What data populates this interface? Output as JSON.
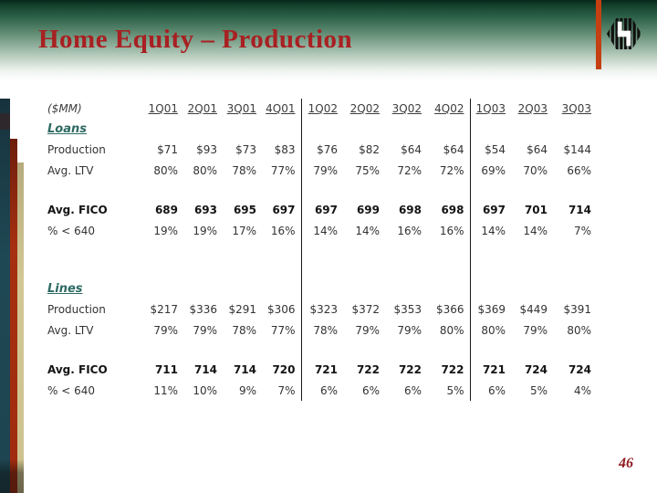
{
  "slide": {
    "title": "Home Equity – Production",
    "page_number": "46"
  },
  "logo": {
    "name": "huntington-hexagon-logo"
  },
  "table": {
    "unit_label": "($MM)",
    "columns": [
      "1Q01",
      "2Q01",
      "3Q01",
      "4Q01",
      "1Q02",
      "2Q02",
      "3Q02",
      "4Q02",
      "1Q03",
      "2Q03",
      "3Q03"
    ],
    "divider_after_columns": [
      "4Q01",
      "4Q02"
    ],
    "sections": [
      {
        "label": "Loans",
        "rows": [
          {
            "label": "Production",
            "bold": false,
            "values": [
              "$71",
              "$93",
              "$73",
              "$83",
              "$76",
              "$82",
              "$64",
              "$64",
              "$54",
              "$64",
              "$144"
            ]
          },
          {
            "label": "Avg. LTV",
            "bold": false,
            "values": [
              "80%",
              "80%",
              "78%",
              "77%",
              "79%",
              "75%",
              "72%",
              "72%",
              "69%",
              "70%",
              "66%"
            ]
          },
          {
            "label": "Avg. FICO",
            "bold": true,
            "spacer_before": true,
            "values": [
              "689",
              "693",
              "695",
              "697",
              "697",
              "699",
              "698",
              "698",
              "697",
              "701",
              "714"
            ]
          },
          {
            "label": "% < 640",
            "bold": false,
            "values": [
              "19%",
              "19%",
              "17%",
              "16%",
              "14%",
              "14%",
              "16%",
              "16%",
              "14%",
              "14%",
              "7%"
            ]
          }
        ]
      },
      {
        "label": "Lines",
        "rows": [
          {
            "label": "Production",
            "bold": false,
            "values": [
              "$217",
              "$336",
              "$291",
              "$306",
              "$323",
              "$372",
              "$353",
              "$366",
              "$369",
              "$449",
              "$391"
            ]
          },
          {
            "label": "Avg. LTV",
            "bold": false,
            "values": [
              "79%",
              "79%",
              "78%",
              "77%",
              "78%",
              "79%",
              "79%",
              "80%",
              "80%",
              "79%",
              "80%"
            ]
          },
          {
            "label": "Avg. FICO",
            "bold": true,
            "spacer_before": true,
            "values": [
              "711",
              "714",
              "714",
              "720",
              "721",
              "722",
              "722",
              "722",
              "721",
              "724",
              "724"
            ]
          },
          {
            "label": "% < 640",
            "bold": false,
            "values": [
              "11%",
              "10%",
              "9%",
              "7%",
              "6%",
              "6%",
              "6%",
              "5%",
              "6%",
              "5%",
              "4%"
            ]
          }
        ]
      }
    ]
  },
  "colors": {
    "title_red": "#a82022",
    "section_teal": "#2d6a63",
    "header_gradient_green": "#16452f",
    "logo_rule_orange": "#c44012",
    "edge_bar_teal": "#1e4854",
    "edge_bar_red": "#a52f10",
    "edge_bar_tan": "#d2c794",
    "table_text": "#333333",
    "divider_line": "#1a1a1a",
    "page_number_red": "#8f1a1d"
  }
}
